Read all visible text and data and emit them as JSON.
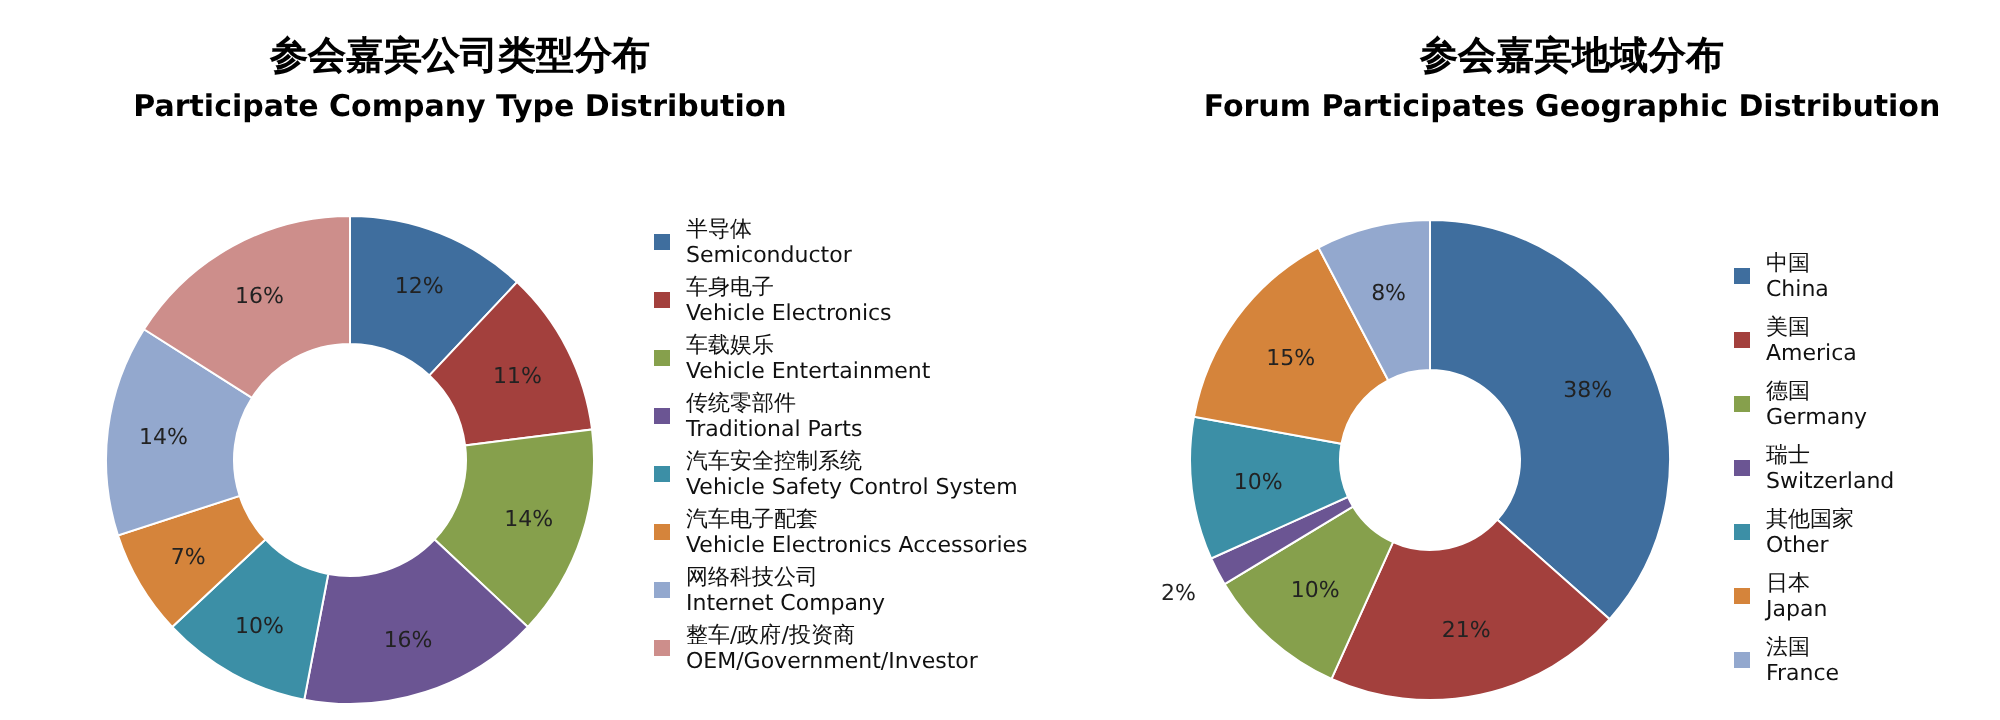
{
  "chart_data": [
    {
      "type": "donut",
      "title": "参会嘉宾公司类型分布",
      "subtitle": "Participate Company Type Distribution",
      "categories": [
        "半导体\nSemiconductor",
        "车身电子\nVehicle Electronics",
        "车载娱乐\nVehicle Entertainment",
        "传统零部件\nTraditional Parts",
        "汽车安全控制系统\nVehicle Safety Control System",
        "汽车电子配套\nVehicle Electronics Accessories",
        "网络科技公司\nInternet Company",
        "整车/政府/投资商\nOEM/Government/Investor"
      ],
      "values": [
        12,
        11,
        14,
        16,
        10,
        7,
        14,
        16
      ],
      "colors": [
        "#3f6e9e",
        "#a3403d",
        "#86a04c",
        "#6b5593",
        "#3c8fa6",
        "#d5843b",
        "#93a8ce",
        "#cd8e8b"
      ],
      "value_labels": [
        "12%",
        "11%",
        "14%",
        "16%",
        "10%",
        "7%",
        "14%",
        "16%"
      ],
      "legend": "right"
    },
    {
      "type": "donut",
      "title": "参会嘉宾地域分布",
      "subtitle": "Forum Participates Geographic Distribution",
      "categories": [
        "中国\nChina",
        "美国\nAmerica",
        "德国\nGermany",
        "瑞士\nSwitzerland",
        "其他国家\nOther",
        "日本\nJapan",
        "法国\nFrance"
      ],
      "values": [
        38,
        21,
        10,
        2,
        10,
        15,
        8
      ],
      "colors": [
        "#3f6e9e",
        "#a3403d",
        "#86a04c",
        "#6b5593",
        "#3c8fa6",
        "#d5843b",
        "#93a8ce"
      ],
      "value_labels": [
        "38%",
        "21%",
        "10%",
        "2%",
        "10%",
        "15%",
        "8%"
      ],
      "legend": "right"
    }
  ]
}
